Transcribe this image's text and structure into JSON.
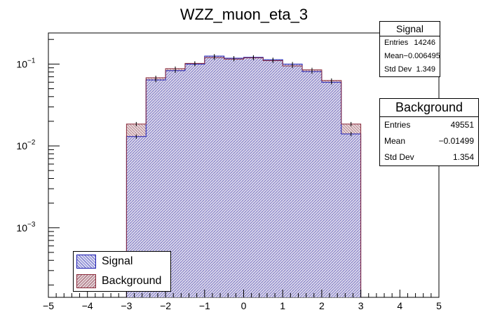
{
  "chart_data": {
    "type": "histogram",
    "title": "WZZ_muon_eta_3",
    "xlabel": "",
    "ylabel": "",
    "xlim": [
      -5,
      5
    ],
    "ylog": true,
    "ylim_log10": [
      -3.85,
      -0.62
    ],
    "x_ticks": [
      "−5",
      "−4",
      "−3",
      "−2",
      "−1",
      "0",
      "1",
      "2",
      "3",
      "4",
      "5"
    ],
    "y_ticks": [
      {
        "value": 0.1,
        "label_base": "10",
        "label_exp": "−1"
      },
      {
        "value": 0.01,
        "label_base": "10",
        "label_exp": "−2"
      },
      {
        "value": 0.001,
        "label_base": "10",
        "label_exp": "−3"
      }
    ],
    "bin_edges": [
      -3.0,
      -2.5,
      -2.0,
      -1.5,
      -1.0,
      -0.5,
      0.0,
      0.5,
      1.0,
      1.5,
      2.0,
      2.5,
      3.0
    ],
    "series": [
      {
        "name": "Signal",
        "line_color": "#1a1ab0",
        "fill_color": "#d2d2ee",
        "values": [
          0.013,
          0.064,
          0.083,
          0.1,
          0.125,
          0.118,
          0.121,
          0.113,
          0.1,
          0.081,
          0.06,
          0.014
        ]
      },
      {
        "name": "Background",
        "line_color": "#8a2a3a",
        "fill_color": "#d8c4c8",
        "values": [
          0.0185,
          0.068,
          0.088,
          0.102,
          0.12,
          0.115,
          0.119,
          0.11,
          0.095,
          0.085,
          0.063,
          0.0185
        ]
      }
    ]
  },
  "stats": {
    "signal": {
      "title": "Signal",
      "rows": [
        {
          "label": "Entries",
          "value": "14246"
        },
        {
          "label": "Mean",
          "value": "−0.006495"
        },
        {
          "label": "Std Dev",
          "value": "1.349"
        }
      ]
    },
    "background": {
      "title": "Background",
      "rows": [
        {
          "label": "Entries",
          "value": "49551"
        },
        {
          "label": "Mean",
          "value": "−0.01499"
        },
        {
          "label": "Std Dev",
          "value": "1.354"
        }
      ]
    }
  },
  "legend": {
    "items": [
      {
        "label": "Signal",
        "color": "#1a1ab0",
        "fill": "#d2d2ee"
      },
      {
        "label": "Background",
        "color": "#8a2a3a",
        "fill": "#d8c4c8"
      }
    ]
  }
}
